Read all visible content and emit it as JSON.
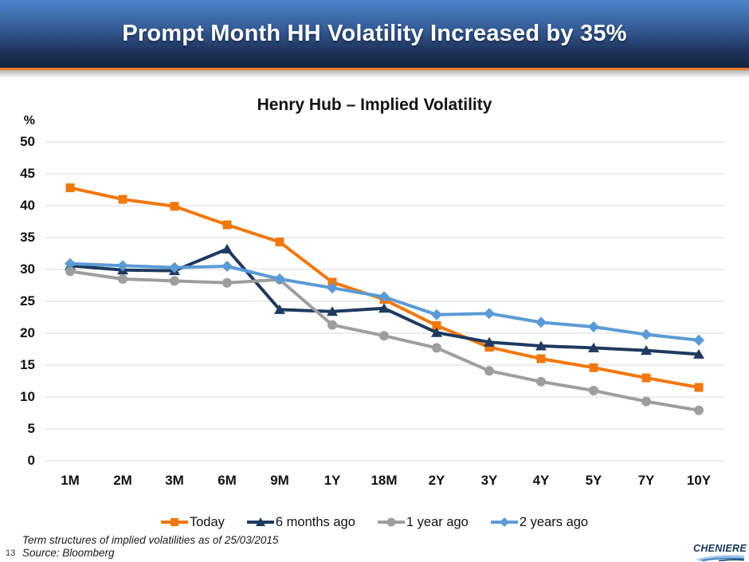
{
  "slide": {
    "title": "Prompt Month HH Volatility Increased by 35%",
    "page_number": "13",
    "footnote_line1": "Term structures of implied volatilities as of 25/03/2015",
    "footnote_line2": "Source: Bloomberg",
    "logo_text": "CHENIERE"
  },
  "colors": {
    "banner_accent": "#E87722",
    "gridline": "#D9D9D9",
    "today": "#F0780C",
    "six_months_ago": "#1F3A5F",
    "one_year_ago": "#9E9E9E",
    "two_years_ago": "#5B9BD5",
    "logo_blue": "#17355E"
  },
  "chart_data": {
    "type": "line",
    "title": "Henry Hub – Implied Volatility",
    "ylabel": "%",
    "ylim": [
      0,
      50
    ],
    "ytick_step": 5,
    "grid": true,
    "legend_position": "bottom",
    "categories": [
      "1M",
      "2M",
      "3M",
      "6M",
      "9M",
      "1Y",
      "18M",
      "2Y",
      "3Y",
      "4Y",
      "5Y",
      "7Y",
      "10Y"
    ],
    "series": [
      {
        "name": "Today",
        "marker": "square",
        "color": "#F0780C",
        "values": [
          42.8,
          41.0,
          39.9,
          37.0,
          34.3,
          28.0,
          25.3,
          21.2,
          17.8,
          16.0,
          14.6,
          13.0,
          11.5
        ]
      },
      {
        "name": "6 months ago",
        "marker": "triangle",
        "color": "#1F3A5F",
        "values": [
          30.6,
          29.9,
          29.8,
          33.2,
          23.7,
          23.4,
          23.9,
          20.1,
          18.6,
          18.0,
          17.7,
          17.3,
          16.7
        ]
      },
      {
        "name": "1 year ago",
        "marker": "circle",
        "color": "#9E9E9E",
        "values": [
          29.7,
          28.5,
          28.2,
          27.9,
          28.4,
          21.3,
          19.6,
          17.7,
          14.1,
          12.4,
          11.0,
          9.3,
          7.9
        ]
      },
      {
        "name": "2 years ago",
        "marker": "diamond",
        "color": "#5B9BD5",
        "values": [
          30.9,
          30.6,
          30.3,
          30.5,
          28.5,
          27.1,
          25.7,
          22.9,
          23.1,
          21.7,
          21.0,
          19.8,
          18.9
        ]
      }
    ]
  }
}
